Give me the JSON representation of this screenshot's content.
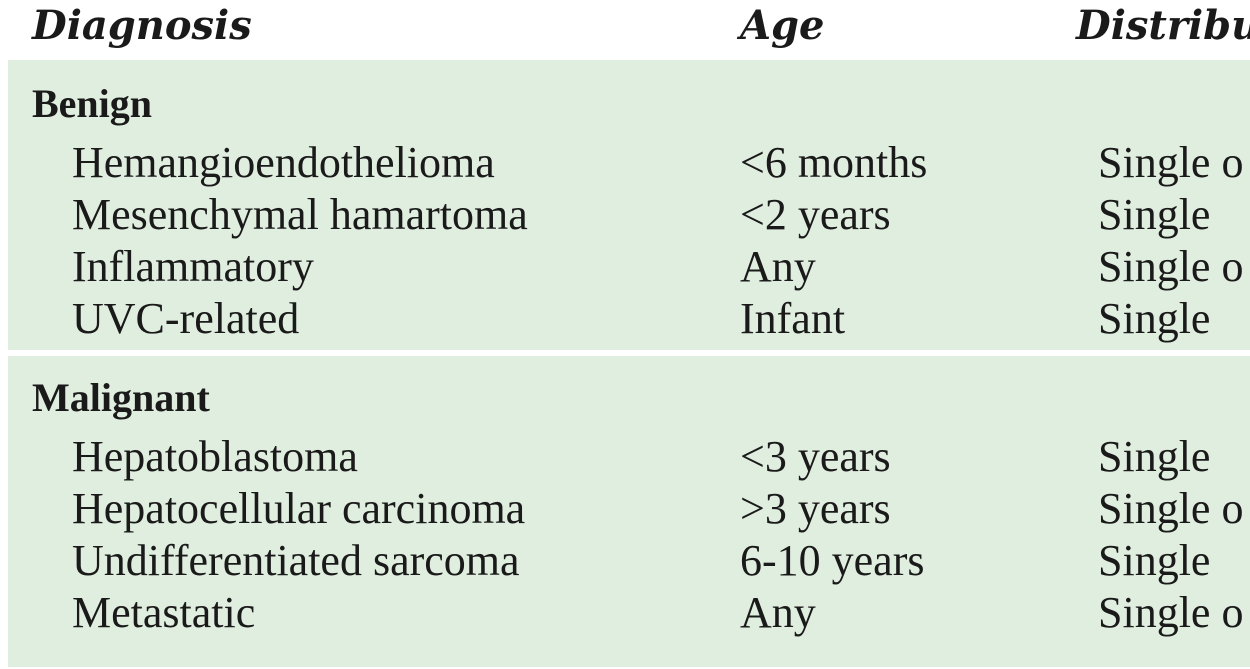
{
  "table": {
    "headers": {
      "diagnosis": "Diagnosis",
      "age": "Age",
      "distribution": "Distribu"
    },
    "sections": [
      {
        "title": "Benign",
        "rows": [
          {
            "diagnosis": "Hemangioendothelioma",
            "age": "<6 months",
            "distribution": "Single o"
          },
          {
            "diagnosis": "Mesenchymal hamartoma",
            "age": "<2 years",
            "distribution": "Single"
          },
          {
            "diagnosis": "Inflammatory",
            "age": "Any",
            "distribution": "Single o"
          },
          {
            "diagnosis": "UVC-related",
            "age": "Infant",
            "distribution": "Single"
          }
        ]
      },
      {
        "title": "Malignant",
        "rows": [
          {
            "diagnosis": "Hepatoblastoma",
            "age": "<3 years",
            "distribution": "Single"
          },
          {
            "diagnosis": "Hepatocellular carcinoma",
            "age": ">3 years",
            "distribution": "Single o"
          },
          {
            "diagnosis": "Undifferentiated sarcoma",
            "age": "6-10 years",
            "distribution": "Single"
          },
          {
            "diagnosis": "Metastatic",
            "age": "Any",
            "distribution": "Single o"
          }
        ]
      }
    ]
  },
  "colors": {
    "section_background": "#e0eedf",
    "text": "#1a1a1a"
  }
}
